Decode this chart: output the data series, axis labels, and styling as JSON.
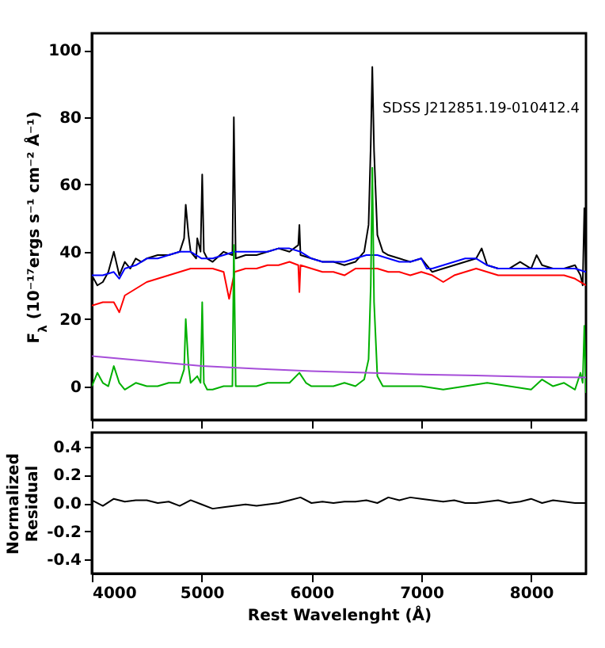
{
  "chart_data": [
    {
      "type": "line",
      "ylabel": "F$_{λ}$ (10⁻¹⁷ergs s⁻¹ cm⁻² Å⁻¹)",
      "annotations": [
        "SDSS J212851.19-010412.4"
      ],
      "xlim": [
        4000,
        8500
      ],
      "xticks": [
        4000,
        5000,
        6000,
        7000,
        8000
      ],
      "ylim": [
        -10,
        105
      ],
      "yticks": [
        0,
        20,
        40,
        60,
        80,
        100
      ],
      "tick_labels": "y",
      "series": [
        {
          "color": "#000000",
          "x": [
            4000,
            4050,
            4100,
            4150,
            4200,
            4250,
            4300,
            4350,
            4400,
            4450,
            4500,
            4600,
            4700,
            4800,
            4840,
            4855,
            4880,
            4900,
            4950,
            4960,
            4990,
            5005,
            5020,
            5050,
            5100,
            5200,
            5280,
            5293,
            5310,
            5400,
            5500,
            5600,
            5700,
            5800,
            5880,
            5890,
            5900,
            6000,
            6100,
            6200,
            6300,
            6400,
            6480,
            6520,
            6540,
            6554,
            6570,
            6600,
            6650,
            6700,
            6800,
            6900,
            7000,
            7100,
            7200,
            7300,
            7400,
            7500,
            7550,
            7600,
            7700,
            7800,
            7900,
            8000,
            8050,
            8100,
            8200,
            8300,
            8400,
            8450,
            8470,
            8485,
            8500
          ],
          "values": [
            33,
            30,
            31,
            34,
            40,
            33,
            37,
            35,
            38,
            37,
            38,
            39,
            39,
            40,
            44,
            54,
            45,
            40,
            38,
            44,
            40,
            63,
            40,
            38,
            37,
            40,
            39,
            80,
            38,
            39,
            39,
            40,
            41,
            40,
            42,
            48,
            39,
            38,
            37,
            37,
            36,
            37,
            40,
            48,
            72,
            95,
            70,
            45,
            40,
            39,
            38,
            37,
            38,
            34,
            35,
            36,
            37,
            38,
            41,
            36,
            35,
            35,
            37,
            35,
            39,
            36,
            35,
            35,
            36,
            33,
            30,
            53,
            33
          ]
        },
        {
          "color": "#0000ff",
          "x": [
            4000,
            4100,
            4200,
            4250,
            4300,
            4400,
            4500,
            4600,
            4700,
            4800,
            4900,
            5000,
            5100,
            5200,
            5300,
            5400,
            5500,
            5600,
            5700,
            5800,
            5900,
            6000,
            6100,
            6200,
            6300,
            6400,
            6500,
            6600,
            6700,
            6800,
            6900,
            7000,
            7050,
            7100,
            7200,
            7300,
            7400,
            7500,
            7600,
            7700,
            7800,
            7900,
            8000,
            8100,
            8200,
            8300,
            8400,
            8500
          ],
          "values": [
            33,
            33,
            34,
            32,
            35,
            36,
            38,
            38,
            39,
            40,
            40,
            38,
            38,
            39,
            40,
            40,
            40,
            40,
            41,
            41,
            40,
            38,
            37,
            37,
            37,
            38,
            39,
            39,
            38,
            37,
            37,
            38,
            35,
            35,
            36,
            37,
            38,
            38,
            36,
            35,
            35,
            35,
            35,
            35,
            35,
            35,
            35,
            34
          ]
        },
        {
          "color": "#ff0000",
          "x": [
            4000,
            4100,
            4200,
            4250,
            4300,
            4400,
            4500,
            4600,
            4700,
            4800,
            4900,
            5000,
            5100,
            5200,
            5250,
            5300,
            5400,
            5500,
            5600,
            5700,
            5800,
            5880,
            5890,
            5900,
            6000,
            6100,
            6200,
            6300,
            6400,
            6500,
            6600,
            6700,
            6800,
            6900,
            7000,
            7100,
            7200,
            7300,
            7400,
            7500,
            7600,
            7700,
            7800,
            7900,
            8000,
            8100,
            8200,
            8300,
            8400,
            8500
          ],
          "values": [
            24,
            25,
            25,
            22,
            27,
            29,
            31,
            32,
            33,
            34,
            35,
            35,
            35,
            34,
            26,
            34,
            35,
            35,
            36,
            36,
            37,
            36,
            28,
            36,
            35,
            34,
            34,
            33,
            35,
            35,
            35,
            34,
            34,
            33,
            34,
            33,
            31,
            33,
            34,
            35,
            34,
            33,
            33,
            33,
            33,
            33,
            33,
            33,
            32,
            30
          ]
        },
        {
          "color": "#00b000",
          "x": [
            4000,
            4050,
            4100,
            4150,
            4200,
            4250,
            4300,
            4400,
            4500,
            4600,
            4700,
            4800,
            4840,
            4855,
            4880,
            4900,
            4960,
            4990,
            5005,
            5020,
            5050,
            5100,
            5200,
            5280,
            5293,
            5310,
            5400,
            5500,
            5600,
            5700,
            5800,
            5890,
            5950,
            6000,
            6100,
            6200,
            6300,
            6400,
            6480,
            6520,
            6540,
            6554,
            6570,
            6600,
            6650,
            6700,
            6800,
            6900,
            7000,
            7200,
            7400,
            7600,
            7800,
            8000,
            8100,
            8200,
            8300,
            8400,
            8450,
            8470,
            8485,
            8500
          ],
          "values": [
            0,
            4,
            1,
            0,
            6,
            1,
            -1,
            1,
            0,
            0,
            1,
            1,
            5,
            20,
            6,
            1,
            3,
            1,
            25,
            1,
            -1,
            -1,
            0,
            0,
            42,
            0,
            0,
            0,
            1,
            1,
            1,
            4,
            1,
            0,
            0,
            0,
            1,
            0,
            2,
            8,
            30,
            65,
            25,
            3,
            0,
            0,
            0,
            0,
            0,
            -1,
            0,
            1,
            0,
            -1,
            2,
            0,
            1,
            -1,
            4,
            1,
            18,
            -2
          ]
        },
        {
          "color": "#a64dd9",
          "x": [
            4000,
            4500,
            5000,
            5500,
            6000,
            6500,
            7000,
            7500,
            8000,
            8500
          ],
          "values": [
            9,
            7.5,
            6,
            5.2,
            4.5,
            4,
            3.5,
            3.2,
            2.8,
            2.6
          ]
        }
      ]
    },
    {
      "type": "line",
      "xlabel": "Rest Wavelenght (Å)",
      "ylabel": "Normalized Residual",
      "xlim": [
        4000,
        8500
      ],
      "xticks": [
        4000,
        5000,
        6000,
        7000,
        8000
      ],
      "ylim": [
        -0.5,
        0.5
      ],
      "yticks": [
        -0.4,
        -0.2,
        {
          "value": 0,
          "label": "0.0"
        },
        0.2,
        0.4
      ],
      "series": [
        {
          "color": "#000000",
          "x": [
            4000,
            4100,
            4200,
            4300,
            4400,
            4500,
            4600,
            4700,
            4800,
            4900,
            5000,
            5100,
            5200,
            5300,
            5400,
            5500,
            5600,
            5700,
            5800,
            5900,
            6000,
            6100,
            6200,
            6300,
            6400,
            6500,
            6600,
            6700,
            6800,
            6900,
            7000,
            7100,
            7200,
            7300,
            7400,
            7500,
            7600,
            7700,
            7800,
            7900,
            8000,
            8100,
            8200,
            8300,
            8400,
            8500
          ],
          "values": [
            0.02,
            -0.02,
            0.03,
            0.01,
            0.02,
            0.02,
            0.0,
            0.01,
            -0.02,
            0.02,
            -0.01,
            -0.04,
            -0.03,
            -0.02,
            -0.01,
            -0.02,
            -0.01,
            0.0,
            0.02,
            0.04,
            0.0,
            0.01,
            0.0,
            0.01,
            0.01,
            0.02,
            0.0,
            0.04,
            0.02,
            0.04,
            0.03,
            0.02,
            0.01,
            0.02,
            0.0,
            0.0,
            0.01,
            0.02,
            0.0,
            0.01,
            0.03,
            0.0,
            0.02,
            0.01,
            0.0,
            0.0
          ]
        }
      ]
    }
  ]
}
